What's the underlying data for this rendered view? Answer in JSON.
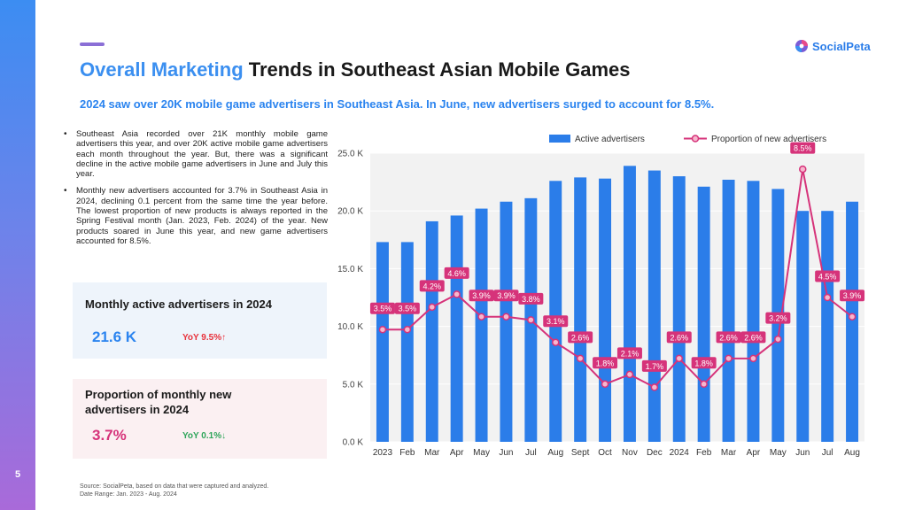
{
  "page": {
    "number": "5"
  },
  "logo": {
    "text": "SocialPeta"
  },
  "header": {
    "title_highlight": "Overall Marketing",
    "title_rest": " Trends in Southeast Asian Mobile Games",
    "subtitle": "2024 saw over 20K mobile game advertisers in Southeast Asia. In June, new advertisers surged to account for 8.5%."
  },
  "bullets": [
    "Southeast Asia recorded over 21K monthly mobile game advertisers this year, and over 20K active mobile game advertisers each month throughout the year. But, there was a significant decline in the active mobile game advertisers in June and July this year.",
    "Monthly new advertisers accounted for 3.7% in Southeast Asia in 2024, declining 0.1 percent from the same time the year before. The lowest proportion of new products is always reported in the Spring Festival month (Jan. 2023, Feb. 2024) of the year. New products soared in June this year, and new game advertisers accounted for 8.5%."
  ],
  "cards": {
    "active": {
      "title": "Monthly active advertisers in 2024",
      "value": "21.6 K",
      "yoy": "YoY 9.5%↑"
    },
    "new": {
      "title": "Proportion of monthly new advertisers in 2024",
      "value": "3.7%",
      "yoy": "YoY 0.1%↓"
    }
  },
  "source": {
    "line1": "Source: SocialPeta, based on data that were captured and analyzed.",
    "line2": "Date Range: Jan. 2023 - Aug. 2024"
  },
  "colors": {
    "bar": "#2b7de9",
    "line": "#d6337a",
    "label_bg": "#d6337a",
    "plot_bg": "#f2f2f2"
  },
  "chart_data": {
    "type": "bar",
    "categories": [
      "2023",
      "Feb",
      "Mar",
      "Apr",
      "May",
      "Jun",
      "Jul",
      "Aug",
      "Sept",
      "Oct",
      "Nov",
      "Dec",
      "2024",
      "Feb",
      "Mar",
      "Apr",
      "May",
      "Jun",
      "Jul",
      "Aug"
    ],
    "series": [
      {
        "name": "Active advertisers",
        "type": "bar",
        "axis": "left",
        "values": [
          17.3,
          17.3,
          19.1,
          19.6,
          20.2,
          20.8,
          21.1,
          22.6,
          22.9,
          22.8,
          23.9,
          23.5,
          23.0,
          22.1,
          22.7,
          22.6,
          21.9,
          20.0,
          20.0,
          20.8
        ]
      },
      {
        "name": "Proportion of new advertisers",
        "type": "line",
        "axis": "right",
        "values": [
          3.5,
          3.5,
          4.2,
          4.6,
          3.9,
          3.9,
          3.8,
          3.1,
          2.6,
          1.8,
          2.1,
          1.7,
          2.6,
          1.8,
          2.6,
          2.6,
          3.2,
          8.5,
          4.5,
          3.9
        ],
        "labels": [
          "3.5%",
          "3.5%",
          "4.2%",
          "4.6%",
          "3.9%",
          "3.9%",
          "3.8%",
          "3.1%",
          "2.6%",
          "1.8%",
          "2.1%",
          "1.7%",
          "2.6%",
          "1.8%",
          "2.6%",
          "2.6%",
          "3.2%",
          "8.5%",
          "4.5%",
          "3.9%"
        ]
      }
    ],
    "y_ticks": [
      "0.0 K",
      "5.0 K",
      "10.0 K",
      "15.0 K",
      "20.0 K",
      "25.0 K"
    ],
    "ylim": [
      0,
      25
    ],
    "y2lim": [
      0,
      9.0
    ],
    "grid": true,
    "legend": "top"
  }
}
